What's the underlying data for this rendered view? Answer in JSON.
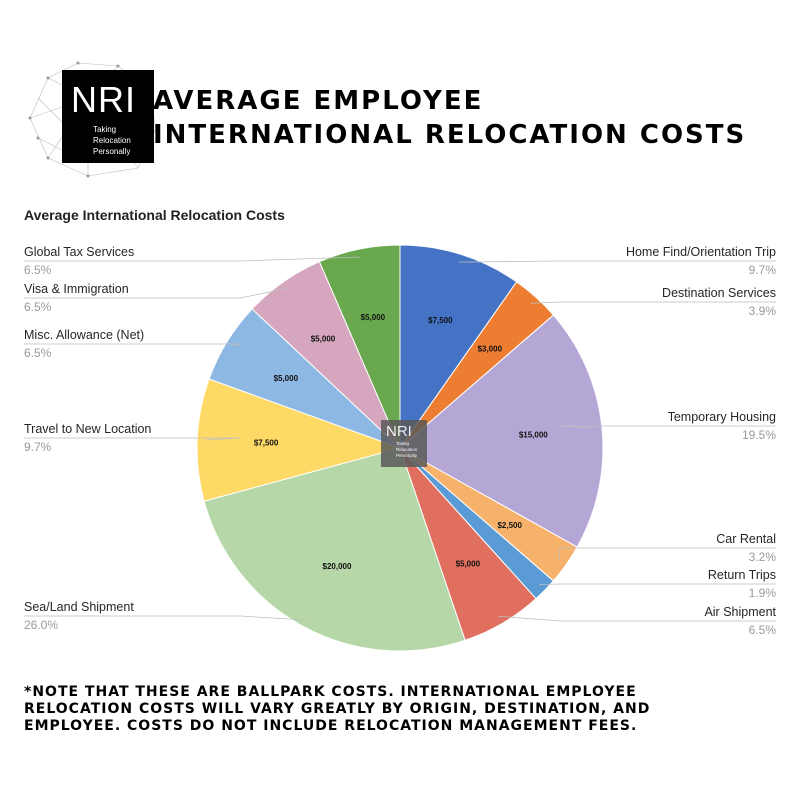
{
  "logo": {
    "name": "NRI",
    "tagline": [
      "Taking",
      "Relocation",
      "Personally"
    ]
  },
  "header": {
    "title_line1": "AVERAGE EMPLOYEE",
    "title_line2": "INTERNATIONAL RELOCATION COSTS"
  },
  "footnote": {
    "line1": "*NOTE THAT THESE ARE BALLPARK COSTS. INTERNATIONAL EMPLOYEE",
    "line2": "RELOCATION COSTS WILL VARY GREATLY BY ORIGIN, DESTINATION, AND",
    "line3": "EMPLOYEE. COSTS DO NOT INCLUDE RELOCATION MANAGEMENT FEES."
  },
  "chart_data": {
    "type": "pie",
    "title": "Average International Relocation Costs",
    "start_angle_deg": 0,
    "direction": "clockwise",
    "slices": [
      {
        "category": "Home Find/Orientation Trip",
        "value": 7500,
        "value_label": "$7,500",
        "percent_label": "9.7%",
        "color": "#4472C4"
      },
      {
        "category": "Destination Services",
        "value": 3000,
        "value_label": "$3,000",
        "percent_label": "3.9%",
        "color": "#ED7D31"
      },
      {
        "category": "Temporary Housing",
        "value": 15000,
        "value_label": "$15,000",
        "percent_label": "19.5%",
        "color": "#B4A7D6"
      },
      {
        "category": "Car Rental",
        "value": 2500,
        "value_label": "$2,500",
        "percent_label": "3.2%",
        "color": "#F6B26B"
      },
      {
        "category": "Return Trips",
        "value": 1500,
        "value_label": "",
        "percent_label": "1.9%",
        "color": "#5B9BD5"
      },
      {
        "category": "Air Shipment",
        "value": 5000,
        "value_label": "$5,000",
        "percent_label": "6.5%",
        "color": "#E06F5F"
      },
      {
        "category": "Sea/Land Shipment",
        "value": 20000,
        "value_label": "$20,000",
        "percent_label": "26.0%",
        "color": "#B6D7A8"
      },
      {
        "category": "Travel to New Location",
        "value": 7500,
        "value_label": "$7,500",
        "percent_label": "9.7%",
        "color": "#FFD966"
      },
      {
        "category": "Misc. Allowance (Net)",
        "value": 5000,
        "value_label": "$5,000",
        "percent_label": "6.5%",
        "color": "#8DB8E3"
      },
      {
        "category": "Visa & Immigration",
        "value": 5000,
        "value_label": "$5,000",
        "percent_label": "6.5%",
        "color": "#D5A6BD"
      },
      {
        "category": "Global Tax Services",
        "value": 5000,
        "value_label": "$5,000",
        "percent_label": "6.5%",
        "color": "#6AA84F"
      }
    ],
    "legend": "none",
    "grid": false
  }
}
